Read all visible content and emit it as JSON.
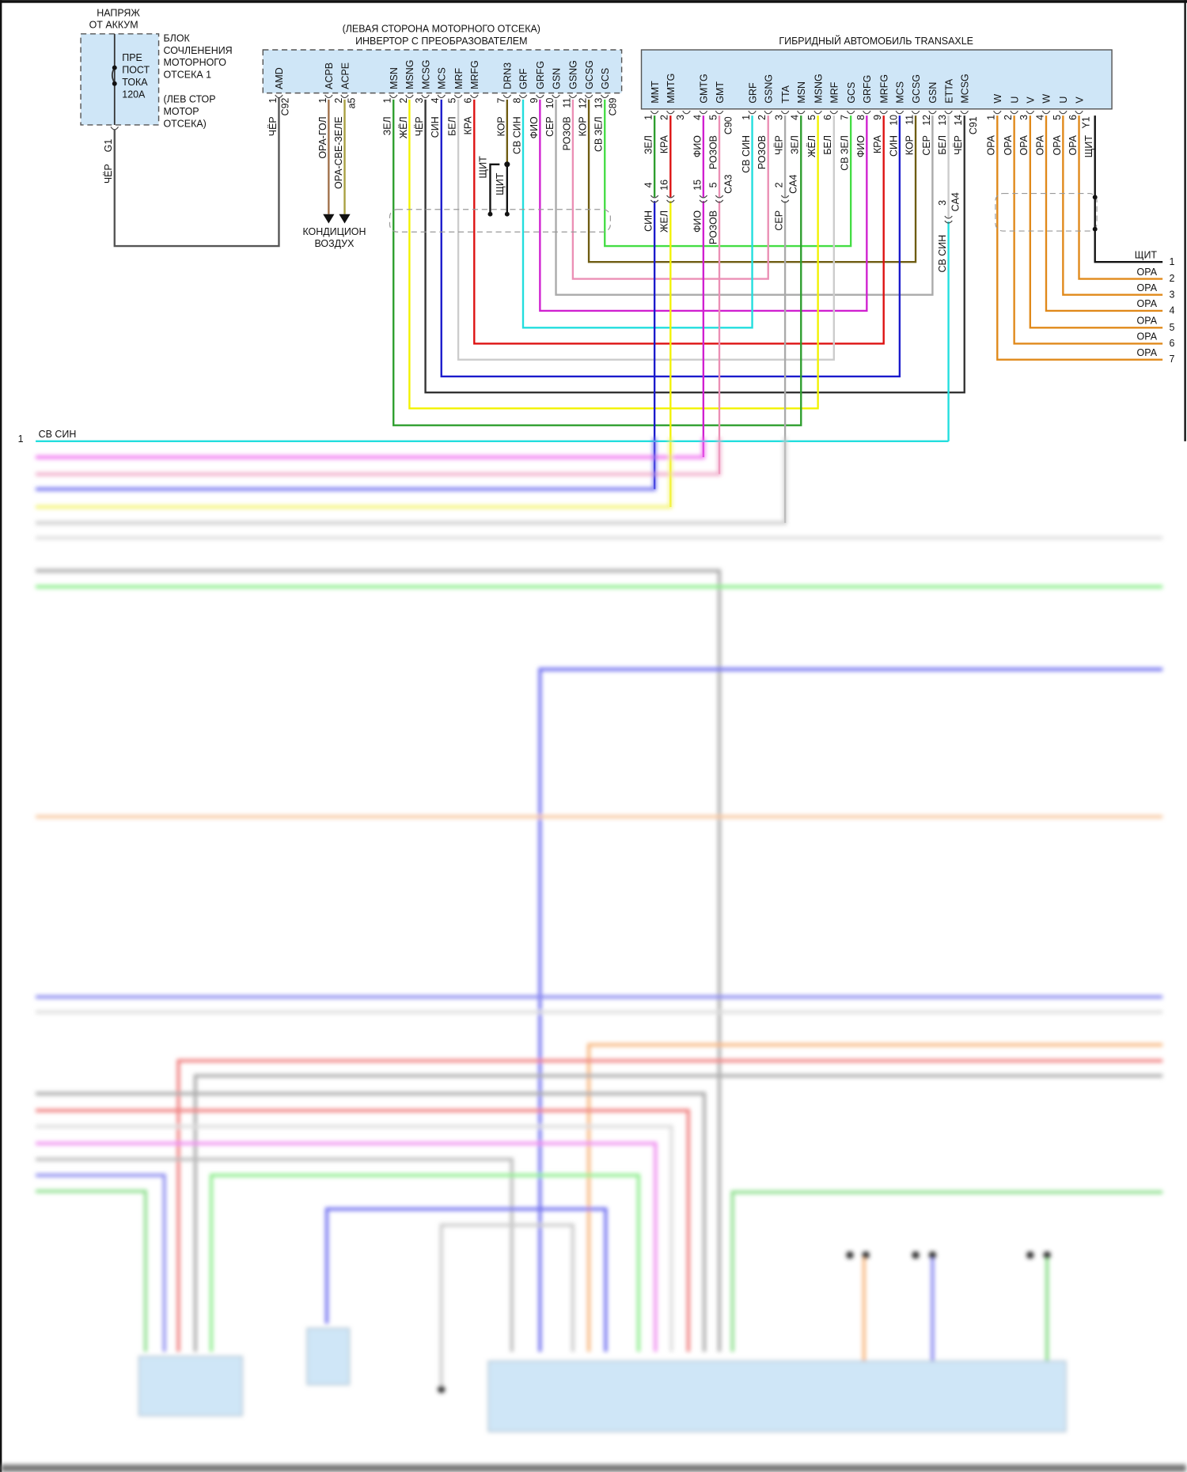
{
  "wire_colors": {
    "ЗЕЛ": "#2e9e2e",
    "ЖЁЛ": "#f2f200",
    "ЖЕЛ": "#f2f200",
    "ЧЁР": "#333333",
    "СИН": "#1a1acc",
    "БЕЛ": "#cccccc",
    "КРА": "#dd1111",
    "КОР": "#6e5c12",
    "СВ СИН": "#22dede",
    "ФИО": "#d020d0",
    "СЕР": "#aaaaaa",
    "РОЗОВ": "#eb8fb5",
    "СВ ЗЕЛ": "#44dd44",
    "ОРА": "#e0891a",
    "ЩИТ": "#111111",
    "ОРА-ГОЛ": "#a0704a",
    "ОРА-СВЕ-ЗЕЛЕ": "#a8a040"
  },
  "power_source": {
    "title": [
      "НАПРЯЖ",
      "ОТ АККУМ"
    ],
    "fuse": [
      "ПРЕ",
      "ПОСТ",
      "ТОКА",
      "120А"
    ],
    "block_label": [
      "БЛОК",
      "СОЧЛЕНЕНИЯ",
      "МОТОРНОГО",
      "ОТСЕКА 1"
    ],
    "location": [
      "(ЛЕВ СТОР",
      "МОТОР",
      "ОТСЕКА)"
    ],
    "connector": "G1",
    "wire": "ЧЁР"
  },
  "inverter": {
    "location": "(ЛЕВАЯ СТОРОНА МОТОРНОГО ОТСЕКА)",
    "title": "ИНВЕРТОР С ПРЕОБРАЗОВАТЕЛЕМ",
    "connectors": [
      "C92",
      "a5",
      "C89"
    ],
    "pins": [
      {
        "name": "AMD",
        "num": "1",
        "wire": "ЧЁР"
      },
      {
        "name": "ACPB",
        "num": "1",
        "wire": "ОРА-ГОЛ"
      },
      {
        "name": "ACPE",
        "num": "2",
        "wire": "ОРА-СВЕ-ЗЕЛЕ"
      },
      {
        "name": "MSN",
        "num": "1",
        "wire": "ЗЕЛ"
      },
      {
        "name": "MSNG",
        "num": "2",
        "wire": "ЖЁЛ"
      },
      {
        "name": "MCSG",
        "num": "3",
        "wire": "ЧЁР"
      },
      {
        "name": "MCS",
        "num": "4",
        "wire": "СИН"
      },
      {
        "name": "MRF",
        "num": "5",
        "wire": "БЕЛ"
      },
      {
        "name": "MRFG",
        "num": "6",
        "wire": "КРА"
      },
      {
        "name": "DRN3",
        "num": "7",
        "wire": "КОР"
      },
      {
        "name": "GRF",
        "num": "8",
        "wire": "СВ СИН"
      },
      {
        "name": "GRFG",
        "num": "9",
        "wire": "ФИО"
      },
      {
        "name": "GSN",
        "num": "10",
        "wire": "СЕР"
      },
      {
        "name": "GSNG",
        "num": "11",
        "wire": "РОЗОВ"
      },
      {
        "name": "GCSG",
        "num": "12",
        "wire": "КОР"
      },
      {
        "name": "GCS",
        "num": "13",
        "wire": "СВ ЗЕЛ"
      }
    ],
    "shield_labels": [
      "ЩИТ",
      "ЩИТ"
    ],
    "ac_destination": [
      "КОНДИЦИОН",
      "ВОЗДУХ"
    ]
  },
  "transaxle": {
    "title": "ГИБРИДНЫЙ АВТОМОБИЛЬ TRANSAXLE",
    "connectors": [
      "C90",
      "C91",
      "Y1"
    ],
    "pins": [
      {
        "name": "MMT",
        "num": "1",
        "wire": "ЗЕЛ"
      },
      {
        "name": "MMTG",
        "num": "2",
        "wire": "КРА"
      },
      {
        "name": "",
        "num": "3",
        "wire": ""
      },
      {
        "name": "GMTG",
        "num": "4",
        "wire": "ФИО"
      },
      {
        "name": "GMT",
        "num": "5",
        "wire": "РОЗОВ"
      },
      {
        "name": "GRF",
        "num": "1",
        "wire": "СВ СИН"
      },
      {
        "name": "GSNG",
        "num": "2",
        "wire": "РОЗОВ"
      },
      {
        "name": "TTA",
        "num": "3",
        "wire": "ЧЁР"
      },
      {
        "name": "MSN",
        "num": "4",
        "wire": "ЗЕЛ"
      },
      {
        "name": "MSNG",
        "num": "5",
        "wire": "ЖЁЛ"
      },
      {
        "name": "MRF",
        "num": "6",
        "wire": "БЕЛ"
      },
      {
        "name": "GCS",
        "num": "7",
        "wire": "СВ ЗЕЛ"
      },
      {
        "name": "GRFG",
        "num": "8",
        "wire": "ФИО"
      },
      {
        "name": "MRFG",
        "num": "9",
        "wire": "КРА"
      },
      {
        "name": "MCS",
        "num": "10",
        "wire": "СИН"
      },
      {
        "name": "GCSG",
        "num": "11",
        "wire": "КОР"
      },
      {
        "name": "GSN",
        "num": "12",
        "wire": "СЕР"
      },
      {
        "name": "ETTA",
        "num": "13",
        "wire": "БЕЛ"
      },
      {
        "name": "MCSG",
        "num": "14",
        "wire": "ЧЁР"
      },
      {
        "name": "W",
        "num": "1",
        "wire": "ОРА"
      },
      {
        "name": "U",
        "num": "2",
        "wire": "ОРА"
      },
      {
        "name": "V",
        "num": "3",
        "wire": "ОРА"
      },
      {
        "name": "W",
        "num": "4",
        "wire": "ОРА"
      },
      {
        "name": "U",
        "num": "5",
        "wire": "ОРА"
      },
      {
        "name": "V",
        "num": "6",
        "wire": "ОРА"
      },
      {
        "name": "",
        "num": "",
        "wire": "ЩИТ"
      }
    ],
    "inline": [
      {
        "num": "4",
        "wire": "СИН"
      },
      {
        "num": "16",
        "wire": "ЖЕЛ"
      },
      {
        "num": "15",
        "wire": "ФИО"
      },
      {
        "num": "5",
        "wire": "РОЗОВ"
      },
      {
        "num": "2",
        "wire": "СЕР"
      },
      {
        "num": "3",
        "wire": "СВ СИН"
      }
    ],
    "inline_connectors": [
      "CA3",
      "CA4",
      "CA4"
    ]
  },
  "outputs": [
    {
      "num": "1",
      "wire": "ЩИТ"
    },
    {
      "num": "2",
      "wire": "ОРА"
    },
    {
      "num": "3",
      "wire": "ОРА"
    },
    {
      "num": "4",
      "wire": "ОРА"
    },
    {
      "num": "5",
      "wire": "ОРА"
    },
    {
      "num": "6",
      "wire": "ОРА"
    },
    {
      "num": "7",
      "wire": "ОРА"
    }
  ],
  "lower": {
    "num": "1",
    "wire": "СВ СИН"
  }
}
